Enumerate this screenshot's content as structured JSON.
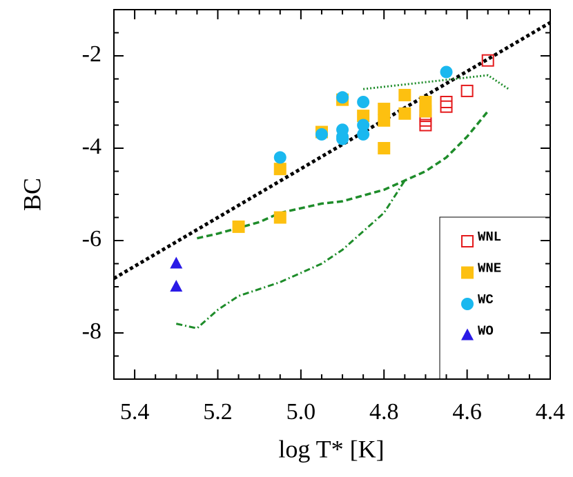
{
  "chart_data": {
    "type": "scatter",
    "xlabel": "log T* [K]",
    "ylabel": "BC",
    "xlim": [
      5.45,
      4.4
    ],
    "ylim": [
      -9,
      -1
    ],
    "xticks": [
      5.4,
      5.2,
      {
        "value": 5.0,
        "label": "5.0"
      },
      4.8,
      4.6,
      4.4
    ],
    "yticks": [
      -8,
      -6,
      -4,
      -2
    ],
    "xminorticks": [
      5.35,
      5.3,
      5.25,
      5.15,
      5.1,
      5.05,
      4.95,
      4.9,
      4.85,
      4.75,
      4.7,
      4.65,
      4.55,
      4.5,
      4.45
    ],
    "yminorticks": [
      -8.5,
      -7.5,
      -7,
      -6.5,
      -5.5,
      -5,
      -4.5,
      -3.5,
      -3,
      -2.5,
      -1.5
    ],
    "legend": "lower right",
    "series": [
      {
        "name": "WNL",
        "marker": "open-square",
        "color": "#e41a1c",
        "x": [
          4.55,
          4.6,
          4.65,
          4.65,
          4.7,
          4.7,
          4.7,
          4.7
        ],
        "values": [
          -2.1,
          -2.76,
          -3.0,
          -3.1,
          -3.2,
          -3.3,
          -3.4,
          -3.5
        ]
      },
      {
        "name": "WNE",
        "marker": "square",
        "color": "#fdc010",
        "x": [
          4.7,
          4.7,
          4.75,
          4.75,
          4.8,
          4.8,
          4.8,
          4.85,
          4.9,
          4.95,
          5.05,
          5.05,
          5.15
        ],
        "values": [
          -3.0,
          -3.2,
          -2.85,
          -3.25,
          -3.15,
          -3.4,
          -4.0,
          -3.3,
          -2.95,
          -3.65,
          -4.45,
          -5.5,
          -5.7
        ]
      },
      {
        "name": "WC",
        "marker": "circle",
        "color": "#1ab8ef",
        "x": [
          4.65,
          4.85,
          4.85,
          4.85,
          4.9,
          4.9,
          4.9,
          4.9,
          4.95,
          5.05
        ],
        "values": [
          -2.35,
          -3.0,
          -3.5,
          -3.7,
          -2.9,
          -3.6,
          -3.75,
          -3.8,
          -3.7,
          -4.2
        ]
      },
      {
        "name": "WO",
        "marker": "triangle",
        "color": "#2a1ae6",
        "x": [
          5.3,
          5.3
        ],
        "values": [
          -6.5,
          -7.0
        ]
      },
      {
        "marker": "line",
        "dash": "dotted-thick",
        "color": "#000000",
        "x": [
          5.45,
          4.4
        ],
        "values": [
          -6.82,
          -1.28
        ]
      },
      {
        "marker": "line",
        "dash": "dotted",
        "color": "#1e8c2a",
        "x": [
          4.85,
          4.55,
          4.5
        ],
        "values": [
          -2.72,
          -2.42,
          -2.72
        ]
      },
      {
        "marker": "line",
        "dash": "dashed",
        "color": "#1e8c2a",
        "x": [
          5.25,
          5.2,
          5.1,
          5.05,
          4.95,
          4.9,
          4.8,
          4.7,
          4.65,
          4.6,
          4.55
        ],
        "values": [
          -5.95,
          -5.85,
          -5.6,
          -5.4,
          -5.2,
          -5.15,
          -4.9,
          -4.5,
          -4.2,
          -3.75,
          -3.2
        ]
      },
      {
        "marker": "line",
        "dash": "dashdot",
        "color": "#1e8c2a",
        "x": [
          5.3,
          5.25,
          5.2,
          5.15,
          5.05,
          4.95,
          4.9,
          4.85,
          4.8,
          4.75
        ],
        "values": [
          -7.8,
          -7.9,
          -7.5,
          -7.2,
          -6.9,
          -6.5,
          -6.2,
          -5.8,
          -5.4,
          -4.7
        ]
      }
    ]
  }
}
